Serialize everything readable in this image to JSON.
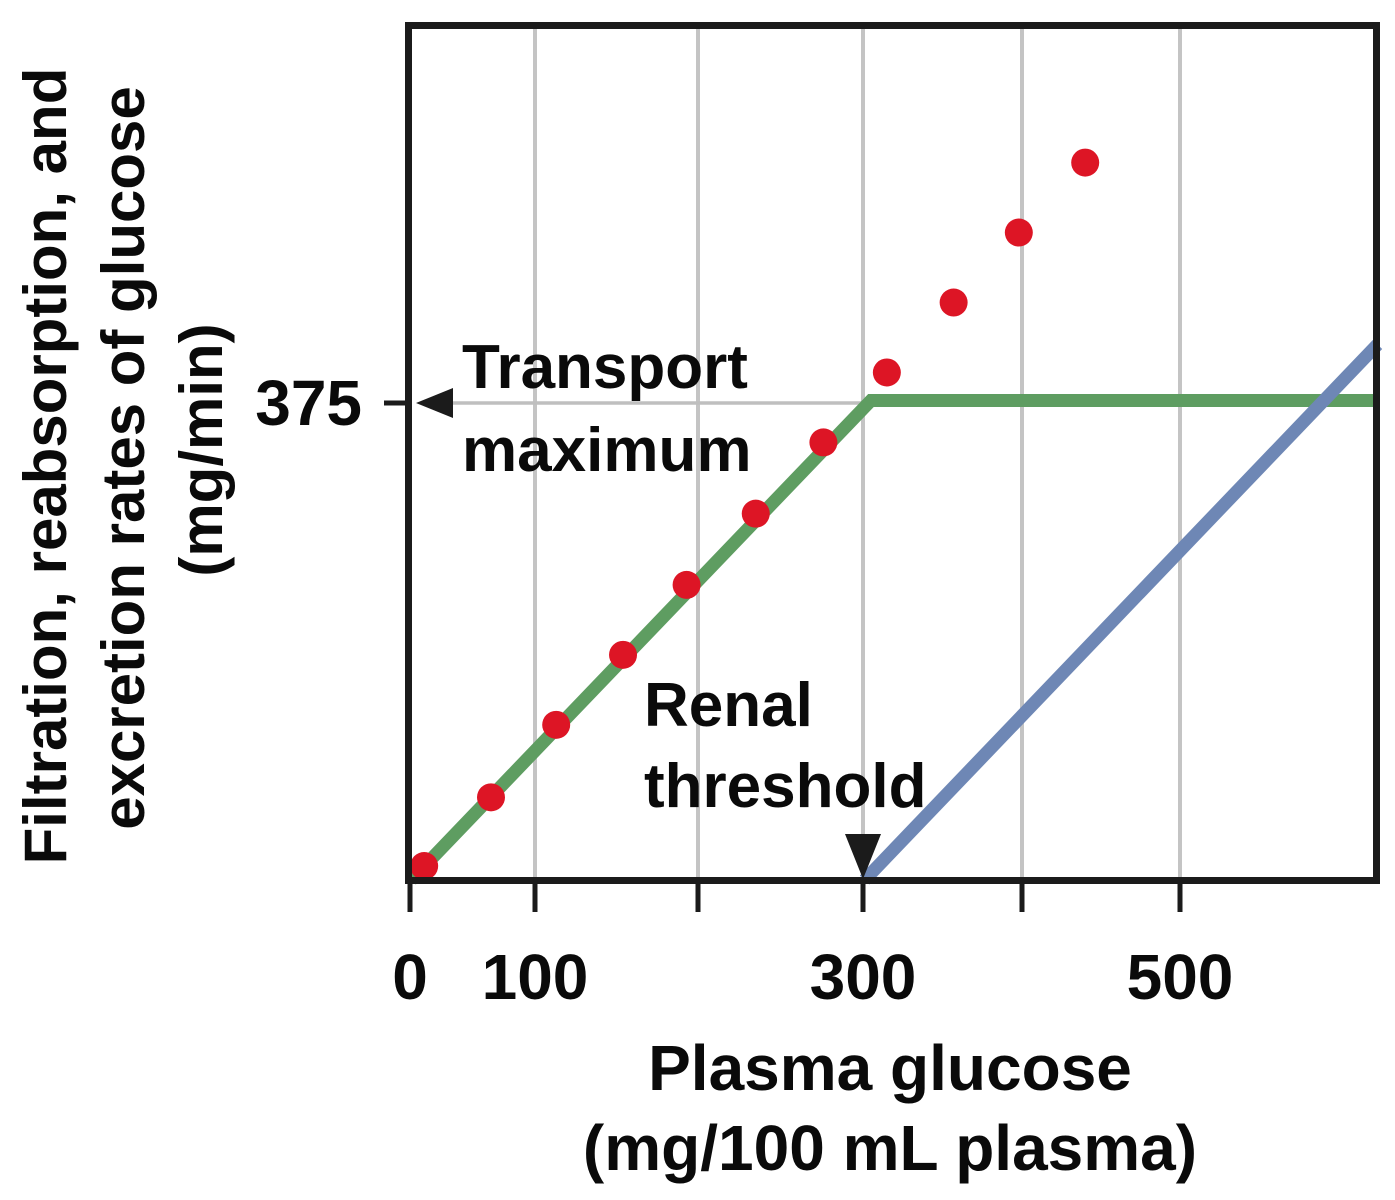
{
  "figure": {
    "y_axis_label": {
      "line1": "Filtration, reabsorption, and",
      "line2": "excretion rates of glucose",
      "line3": "(mg/min)"
    },
    "y_tick_label": "375",
    "x_tick_labels": [
      "0",
      "100",
      "300",
      "500"
    ],
    "x_axis_title": {
      "line1": "Plasma glucose",
      "line2": "(mg/100 mL plasma)"
    },
    "annotations": {
      "transport_line1": "Transport",
      "transport_line2": "maximum",
      "renal_line1": "Renal",
      "renal_line2": "threshold"
    }
  },
  "colors": {
    "filtration_dots": "#dd1525",
    "reabsorption_line": "#5e9d61",
    "excretion_line": "#6e87b5",
    "gridline": "#c4c4c4",
    "reference_line": "#bfbfbf",
    "axis_frame": "#1b1b1b",
    "background": "#ffffff",
    "text": "#0a0a0a"
  },
  "chart_data": {
    "type": "scatter",
    "xlabel": "Plasma glucose (mg/100 mL plasma)",
    "ylabel": "Filtration, reabsorption, and excretion rates of glucose (mg/min)",
    "xlim": [
      0,
      630
    ],
    "ylim": [
      0,
      670
    ],
    "x_ticks_labeled": [
      0,
      100,
      300,
      500
    ],
    "x_ticks_unlabeled": [
      200,
      400
    ],
    "y_ticks_labeled": [
      375
    ],
    "grid": "vertical-only",
    "transport_maximum": 375,
    "renal_threshold": 300,
    "annotations": [
      {
        "text": "Transport maximum",
        "arrow": "left",
        "points_to_y": 375
      },
      {
        "text": "Renal threshold",
        "arrow": "down",
        "points_to_x": 300
      }
    ],
    "series": [
      {
        "name": "Filtration",
        "style": "scatter",
        "marker": "circle",
        "color": "#dd1525",
        "points": [
          [
            32,
            11
          ],
          [
            73,
            65
          ],
          [
            113,
            122
          ],
          [
            154,
            177
          ],
          [
            193,
            232
          ],
          [
            235,
            288
          ],
          [
            276,
            344
          ],
          [
            315,
            399
          ],
          [
            357,
            454
          ],
          [
            398,
            509
          ],
          [
            440,
            564
          ]
        ]
      },
      {
        "name": "Reabsorption",
        "style": "line",
        "color": "#5e9d61",
        "points": [
          [
            24,
            0
          ],
          [
            305,
            377
          ],
          [
            625,
            377
          ]
        ]
      },
      {
        "name": "Excretion",
        "style": "line",
        "color": "#6e87b5",
        "points": [
          [
            301,
            0
          ],
          [
            625,
            421
          ]
        ]
      }
    ],
    "reference_line_y": 375
  }
}
